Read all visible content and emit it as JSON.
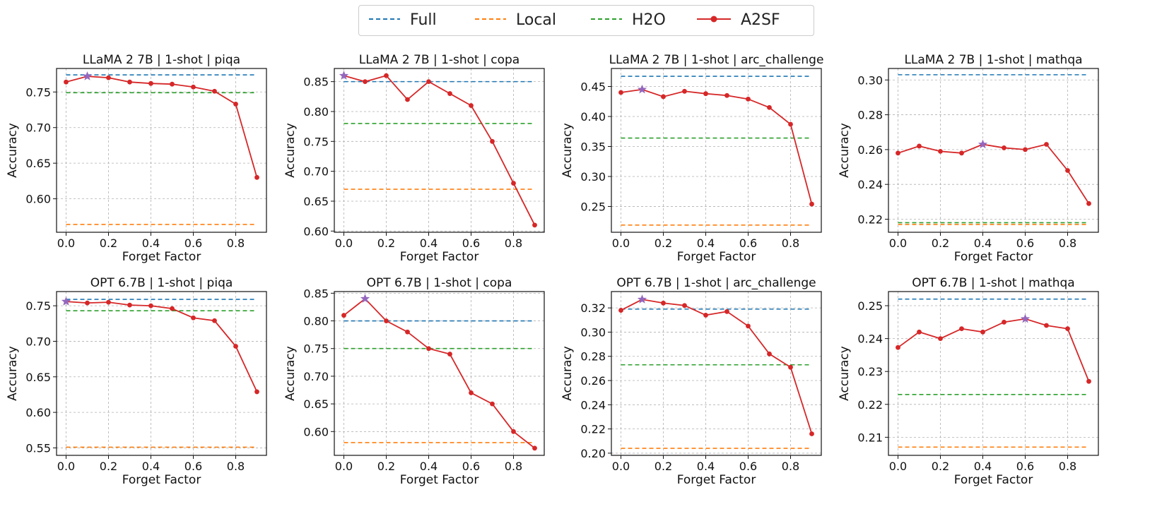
{
  "legend": {
    "entries": [
      {
        "label": "Full",
        "color": "#1f77b4",
        "style": "dashed"
      },
      {
        "label": "Local",
        "color": "#ff7f0e",
        "style": "dashed"
      },
      {
        "label": "H2O",
        "color": "#2ca02c",
        "style": "dashed"
      },
      {
        "label": "A2SF",
        "color": "#d62728",
        "style": "line-marker"
      }
    ],
    "placement": "top-center"
  },
  "colors": {
    "full": "#1f77b4",
    "local": "#ff7f0e",
    "h2o": "#2ca02c",
    "a2sf": "#d62728",
    "best": "#9467bd"
  },
  "chart_data": [
    {
      "type": "line",
      "title": "LLaMA 2 7B | 1-shot | piqa",
      "xlabel": "Forget Factor",
      "ylabel": "Accuracy",
      "x": [
        0.0,
        0.1,
        0.2,
        0.3,
        0.4,
        0.5,
        0.6,
        0.7,
        0.8,
        0.9
      ],
      "xticks": [
        0.0,
        0.2,
        0.4,
        0.6,
        0.8
      ],
      "xticklabels": [
        "0.0",
        "0.2",
        "0.4",
        "0.6",
        "0.8"
      ],
      "yticks": [
        0.6,
        0.65,
        0.7,
        0.75
      ],
      "yticklabels": [
        "0.60",
        "0.65",
        "0.70",
        "0.75"
      ],
      "ylim": [
        0.553,
        0.783
      ],
      "full": 0.774,
      "local": 0.564,
      "h2o": 0.749,
      "a2sf": [
        0.764,
        0.772,
        0.77,
        0.764,
        0.762,
        0.761,
        0.757,
        0.751,
        0.733,
        0.63
      ],
      "best_x": 0.1,
      "grid": true
    },
    {
      "type": "line",
      "title": "LLaMA 2 7B | 1-shot | copa",
      "xlabel": "Forget Factor",
      "ylabel": "Accuracy",
      "x": [
        0.0,
        0.1,
        0.2,
        0.3,
        0.4,
        0.5,
        0.6,
        0.7,
        0.8,
        0.9
      ],
      "xticks": [
        0.0,
        0.2,
        0.4,
        0.6,
        0.8
      ],
      "xticklabels": [
        "0.0",
        "0.2",
        "0.4",
        "0.6",
        "0.8"
      ],
      "yticks": [
        0.6,
        0.65,
        0.7,
        0.75,
        0.8,
        0.85
      ],
      "yticklabels": [
        "0.60",
        "0.65",
        "0.70",
        "0.75",
        "0.80",
        "0.85"
      ],
      "ylim": [
        0.598,
        0.872
      ],
      "full": 0.85,
      "local": 0.67,
      "h2o": 0.78,
      "a2sf": [
        0.86,
        0.85,
        0.86,
        0.82,
        0.85,
        0.83,
        0.81,
        0.75,
        0.68,
        0.61
      ],
      "best_x": 0.0,
      "grid": true
    },
    {
      "type": "line",
      "title": "LLaMA 2 7B | 1-shot | arc_challenge",
      "xlabel": "Forget Factor",
      "ylabel": "Accuracy",
      "x": [
        0.0,
        0.1,
        0.2,
        0.3,
        0.4,
        0.5,
        0.6,
        0.7,
        0.8,
        0.9
      ],
      "xticks": [
        0.0,
        0.2,
        0.4,
        0.6,
        0.8
      ],
      "xticklabels": [
        "0.0",
        "0.2",
        "0.4",
        "0.6",
        "0.8"
      ],
      "yticks": [
        0.25,
        0.3,
        0.35,
        0.4,
        0.45
      ],
      "yticklabels": [
        "0.25",
        "0.30",
        "0.35",
        "0.40",
        "0.45"
      ],
      "ylim": [
        0.207,
        0.48
      ],
      "full": 0.467,
      "local": 0.219,
      "h2o": 0.364,
      "a2sf": [
        0.44,
        0.445,
        0.433,
        0.442,
        0.438,
        0.435,
        0.429,
        0.415,
        0.387,
        0.254
      ],
      "best_x": 0.1,
      "grid": true
    },
    {
      "type": "line",
      "title": "LLaMA 2 7B | 1-shot | mathqa",
      "xlabel": "Forget Factor",
      "ylabel": "Accuracy",
      "x": [
        0.0,
        0.1,
        0.2,
        0.3,
        0.4,
        0.5,
        0.6,
        0.7,
        0.8,
        0.9
      ],
      "xticks": [
        0.0,
        0.2,
        0.4,
        0.6,
        0.8
      ],
      "xticklabels": [
        "0.0",
        "0.2",
        "0.4",
        "0.6",
        "0.8"
      ],
      "yticks": [
        0.22,
        0.24,
        0.26,
        0.28,
        0.3
      ],
      "yticklabels": [
        "0.22",
        "0.24",
        "0.26",
        "0.28",
        "0.30"
      ],
      "ylim": [
        0.2125,
        0.3066
      ],
      "full": 0.303,
      "local": 0.217,
      "h2o": 0.218,
      "a2sf": [
        0.258,
        0.262,
        0.259,
        0.258,
        0.263,
        0.261,
        0.26,
        0.263,
        0.248,
        0.229
      ],
      "best_x": 0.4,
      "grid": true
    },
    {
      "type": "line",
      "title": "OPT 6.7B | 1-shot | piqa",
      "xlabel": "Forget Factor",
      "ylabel": "Accuracy",
      "x": [
        0.0,
        0.1,
        0.2,
        0.3,
        0.4,
        0.5,
        0.6,
        0.7,
        0.8,
        0.9
      ],
      "xticks": [
        0.0,
        0.2,
        0.4,
        0.6,
        0.8
      ],
      "xticklabels": [
        "0.0",
        "0.2",
        "0.4",
        "0.6",
        "0.8"
      ],
      "yticks": [
        0.55,
        0.6,
        0.65,
        0.7,
        0.75
      ],
      "yticklabels": [
        "0.55",
        "0.60",
        "0.65",
        "0.70",
        "0.75"
      ],
      "ylim": [
        0.5395,
        0.77
      ],
      "full": 0.759,
      "local": 0.551,
      "h2o": 0.743,
      "a2sf": [
        0.756,
        0.754,
        0.755,
        0.751,
        0.75,
        0.746,
        0.733,
        0.729,
        0.693,
        0.629
      ],
      "best_x": 0.0,
      "grid": true
    },
    {
      "type": "line",
      "title": "OPT 6.7B | 1-shot | copa",
      "xlabel": "Forget Factor",
      "ylabel": "Accuracy",
      "x": [
        0.0,
        0.1,
        0.2,
        0.3,
        0.4,
        0.5,
        0.6,
        0.7,
        0.8,
        0.9
      ],
      "xticks": [
        0.0,
        0.2,
        0.4,
        0.6,
        0.8
      ],
      "xticklabels": [
        "0.0",
        "0.2",
        "0.4",
        "0.6",
        "0.8"
      ],
      "yticks": [
        0.6,
        0.65,
        0.7,
        0.75,
        0.8,
        0.85
      ],
      "yticklabels": [
        "0.60",
        "0.65",
        "0.70",
        "0.75",
        "0.80",
        "0.85"
      ],
      "ylim": [
        0.557,
        0.853
      ],
      "full": 0.8,
      "local": 0.58,
      "h2o": 0.75,
      "a2sf": [
        0.81,
        0.84,
        0.8,
        0.78,
        0.75,
        0.74,
        0.67,
        0.65,
        0.6,
        0.57
      ],
      "best_x": 0.1,
      "grid": true
    },
    {
      "type": "line",
      "title": "OPT 6.7B | 1-shot | arc_challenge",
      "xlabel": "Forget Factor",
      "ylabel": "Accuracy",
      "x": [
        0.0,
        0.1,
        0.2,
        0.3,
        0.4,
        0.5,
        0.6,
        0.7,
        0.8,
        0.9
      ],
      "xticks": [
        0.0,
        0.2,
        0.4,
        0.6,
        0.8
      ],
      "xticklabels": [
        "0.0",
        "0.2",
        "0.4",
        "0.6",
        "0.8"
      ],
      "yticks": [
        0.2,
        0.22,
        0.24,
        0.26,
        0.28,
        0.3,
        0.32
      ],
      "yticklabels": [
        "0.20",
        "0.22",
        "0.24",
        "0.26",
        "0.28",
        "0.30",
        "0.32"
      ],
      "ylim": [
        0.1982,
        0.3335
      ],
      "full": 0.319,
      "local": 0.204,
      "h2o": 0.273,
      "a2sf": [
        0.318,
        0.327,
        0.324,
        0.322,
        0.314,
        0.317,
        0.305,
        0.282,
        0.271,
        0.216
      ],
      "best_x": 0.1,
      "grid": true
    },
    {
      "type": "line",
      "title": "OPT 6.7B | 1-shot | mathqa",
      "xlabel": "Forget Factor",
      "ylabel": "Accuracy",
      "x": [
        0.0,
        0.1,
        0.2,
        0.3,
        0.4,
        0.5,
        0.6,
        0.7,
        0.8,
        0.9
      ],
      "xticks": [
        0.0,
        0.2,
        0.4,
        0.6,
        0.8
      ],
      "xticklabels": [
        "0.0",
        "0.2",
        "0.4",
        "0.6",
        "0.8"
      ],
      "yticks": [
        0.21,
        0.22,
        0.23,
        0.24,
        0.25
      ],
      "yticklabels": [
        "0.21",
        "0.22",
        "0.23",
        "0.24",
        "0.25"
      ],
      "ylim": [
        0.2045,
        0.2543
      ],
      "full": 0.252,
      "local": 0.207,
      "h2o": 0.223,
      "a2sf": [
        0.2373,
        0.242,
        0.24,
        0.243,
        0.242,
        0.245,
        0.246,
        0.244,
        0.243,
        0.227
      ],
      "best_x": 0.6,
      "grid": true
    }
  ]
}
